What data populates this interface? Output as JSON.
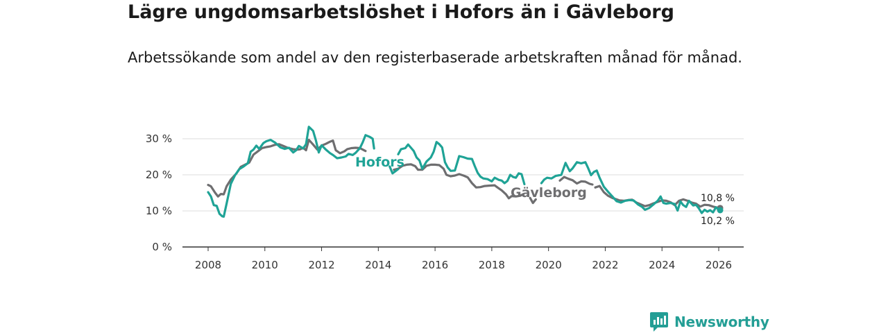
{
  "brand": {
    "name": "Newsworthy",
    "icon": "newsworthy-logo-icon",
    "color": "#239e95"
  },
  "chart_data": {
    "type": "line",
    "title": "Lägre ungdomsarbetslöshet i Hofors än i Gävleborg",
    "subtitle": "Arbetssökande som andel av den registerbaserade arbetskraften månad för månad.",
    "xlabel": "",
    "ylabel": "",
    "xlim": [
      2007.5,
      2027
    ],
    "ylim": [
      0,
      30
    ],
    "x_ticks": [
      2008,
      2010,
      2012,
      2014,
      2016,
      2018,
      2020,
      2022,
      2024,
      2026
    ],
    "x_tick_labels": [
      "2008",
      "2010",
      "2012",
      "2014",
      "2016",
      "2018",
      "2020",
      "2022",
      "2024",
      "2026"
    ],
    "y_ticks": [
      0,
      10,
      20,
      30
    ],
    "y_tick_labels": [
      "0 %",
      "10 %",
      "20 %",
      "30 %"
    ],
    "grid": true,
    "series": [
      {
        "name": "Gävleborg",
        "label": "Gävleborg",
        "color": "#6e6e70",
        "end_label": "10,8 %",
        "end_value": 10.8,
        "points": [
          [
            2008.0,
            17.2
          ],
          [
            2008.1,
            16.8
          ],
          [
            2008.25,
            15.0
          ],
          [
            2008.35,
            14.0
          ],
          [
            2008.45,
            14.7
          ],
          [
            2008.55,
            14.6
          ],
          [
            2008.65,
            16.8
          ],
          [
            2008.8,
            18.7
          ],
          [
            2009.0,
            20.4
          ],
          [
            2009.15,
            22.2
          ],
          [
            2009.3,
            22.8
          ],
          [
            2009.45,
            23.4
          ],
          [
            2009.6,
            25.6
          ],
          [
            2009.75,
            26.5
          ],
          [
            2009.9,
            27.4
          ],
          [
            2010.05,
            27.7
          ],
          [
            2010.2,
            27.9
          ],
          [
            2010.35,
            28.3
          ],
          [
            2010.5,
            28.5
          ],
          [
            2010.65,
            28.0
          ],
          [
            2010.8,
            27.5
          ],
          [
            2011.0,
            27.1
          ],
          [
            2011.15,
            27.0
          ],
          [
            2011.25,
            27.1
          ],
          [
            2011.35,
            27.5
          ],
          [
            2011.45,
            26.8
          ],
          [
            2011.55,
            29.7
          ],
          [
            2011.7,
            28.4
          ],
          [
            2011.85,
            27.0
          ],
          [
            2012.0,
            28.1
          ],
          [
            2012.15,
            28.6
          ],
          [
            2012.3,
            29.2
          ],
          [
            2012.4,
            29.5
          ],
          [
            2012.5,
            26.8
          ],
          [
            2012.65,
            26.0
          ],
          [
            2012.8,
            26.5
          ],
          [
            2012.9,
            27.1
          ],
          [
            2013.05,
            27.4
          ],
          [
            2013.2,
            27.5
          ],
          [
            2013.35,
            27.4
          ],
          [
            2013.45,
            27.0
          ],
          [
            2013.55,
            26.6
          ],
          [
            null,
            null
          ],
          [
            2014.55,
            21.4
          ],
          [
            2014.7,
            21.7
          ],
          [
            2014.85,
            22.5
          ],
          [
            2015.0,
            22.8
          ],
          [
            2015.15,
            22.9
          ],
          [
            2015.3,
            22.4
          ],
          [
            2015.4,
            21.4
          ],
          [
            2015.55,
            21.4
          ],
          [
            2015.7,
            22.5
          ],
          [
            2015.85,
            22.8
          ],
          [
            2016.0,
            22.8
          ],
          [
            2016.15,
            22.7
          ],
          [
            2016.3,
            21.7
          ],
          [
            2016.4,
            20.0
          ],
          [
            2016.55,
            19.6
          ],
          [
            2016.7,
            19.8
          ],
          [
            2016.85,
            20.2
          ],
          [
            2017.0,
            19.8
          ],
          [
            2017.15,
            19.3
          ],
          [
            2017.3,
            17.7
          ],
          [
            2017.45,
            16.5
          ],
          [
            2017.6,
            16.6
          ],
          [
            2017.75,
            16.9
          ],
          [
            2017.9,
            17.0
          ],
          [
            2018.1,
            17.1
          ],
          [
            2018.2,
            16.5
          ],
          [
            2018.35,
            15.7
          ],
          [
            2018.5,
            14.6
          ],
          [
            2018.6,
            13.5
          ],
          [
            2018.7,
            14.1
          ],
          [
            2018.85,
            14.0
          ],
          [
            2019.0,
            14.2
          ],
          [
            2019.1,
            14.6
          ],
          [
            null,
            null
          ],
          [
            2019.35,
            13.6
          ],
          [
            2019.45,
            12.2
          ],
          [
            2019.55,
            13.2
          ],
          [
            null,
            null
          ],
          [
            2020.4,
            18.4
          ],
          [
            2020.55,
            19.4
          ],
          [
            2020.7,
            18.9
          ],
          [
            2020.85,
            18.5
          ],
          [
            2021.0,
            17.6
          ],
          [
            2021.15,
            18.2
          ],
          [
            2021.3,
            18.1
          ],
          [
            2021.45,
            17.5
          ],
          [
            2021.55,
            17.3
          ],
          [
            null,
            null
          ],
          [
            2021.65,
            16.5
          ],
          [
            2021.8,
            16.9
          ],
          [
            2021.95,
            15.2
          ],
          [
            2022.1,
            14.2
          ],
          [
            2022.25,
            13.6
          ],
          [
            2022.4,
            13.2
          ],
          [
            2022.5,
            12.9
          ],
          [
            2022.65,
            12.8
          ],
          [
            2022.8,
            13.0
          ],
          [
            2022.95,
            13.1
          ],
          [
            2023.1,
            12.3
          ],
          [
            2023.25,
            11.8
          ],
          [
            2023.4,
            11.3
          ],
          [
            2023.55,
            11.6
          ],
          [
            2023.7,
            12.1
          ],
          [
            2023.85,
            12.5
          ],
          [
            2024.0,
            12.9
          ],
          [
            2024.15,
            12.8
          ],
          [
            2024.3,
            12.4
          ],
          [
            2024.45,
            11.6
          ],
          [
            2024.6,
            12.8
          ],
          [
            2024.75,
            13.2
          ],
          [
            2024.9,
            12.8
          ],
          [
            2025.05,
            12.3
          ],
          [
            2025.2,
            12.0
          ],
          [
            2025.35,
            11.2
          ],
          [
            2025.5,
            11.7
          ],
          [
            2025.65,
            11.6
          ],
          [
            2025.8,
            11.2
          ],
          [
            2025.95,
            10.9
          ],
          [
            2026.05,
            10.8
          ]
        ]
      },
      {
        "name": "Hofors",
        "label": "Hofors",
        "color": "#1fa396",
        "end_label": "10,2 %",
        "end_value": 10.2,
        "points": [
          [
            2008.0,
            15.2
          ],
          [
            2008.1,
            14.0
          ],
          [
            2008.2,
            11.6
          ],
          [
            2008.3,
            11.4
          ],
          [
            2008.4,
            9.2
          ],
          [
            2008.5,
            8.5
          ],
          [
            2008.55,
            8.4
          ],
          [
            2008.65,
            12.0
          ],
          [
            2008.8,
            17.5
          ],
          [
            2008.95,
            19.9
          ],
          [
            2009.1,
            21.6
          ],
          [
            2009.25,
            22.3
          ],
          [
            2009.4,
            23.2
          ],
          [
            2009.5,
            26.4
          ],
          [
            2009.6,
            27.0
          ],
          [
            2009.7,
            28.1
          ],
          [
            2009.8,
            27.2
          ],
          [
            2009.95,
            28.8
          ],
          [
            2010.05,
            29.3
          ],
          [
            2010.2,
            29.7
          ],
          [
            2010.35,
            29.0
          ],
          [
            2010.45,
            28.3
          ],
          [
            2010.55,
            27.6
          ],
          [
            2010.7,
            27.2
          ],
          [
            2010.85,
            27.5
          ],
          [
            2011.0,
            26.2
          ],
          [
            2011.1,
            26.8
          ],
          [
            2011.2,
            28.0
          ],
          [
            2011.35,
            27.3
          ],
          [
            2011.45,
            28.5
          ],
          [
            2011.55,
            33.3
          ],
          [
            2011.7,
            32.2
          ],
          [
            2011.8,
            29.5
          ],
          [
            2011.9,
            26.2
          ],
          [
            2012.0,
            28.2
          ],
          [
            2012.15,
            27.0
          ],
          [
            2012.3,
            26.0
          ],
          [
            2012.4,
            25.5
          ],
          [
            2012.55,
            24.6
          ],
          [
            2012.7,
            24.8
          ],
          [
            2012.85,
            25.1
          ],
          [
            2012.95,
            25.8
          ],
          [
            2013.1,
            25.5
          ],
          [
            2013.2,
            26.1
          ],
          [
            2013.35,
            27.4
          ],
          [
            2013.45,
            29.0
          ],
          [
            2013.55,
            31.0
          ],
          [
            2013.7,
            30.5
          ],
          [
            2013.8,
            30.0
          ],
          [
            2013.85,
            27.3
          ],
          [
            null,
            null
          ],
          [
            2014.4,
            22.3
          ],
          [
            2014.5,
            20.4
          ],
          [
            2014.6,
            21.0
          ],
          [
            2014.7,
            21.6
          ],
          [
            null,
            null
          ],
          [
            2014.7,
            25.7
          ],
          [
            2014.8,
            27.1
          ],
          [
            2014.95,
            27.4
          ],
          [
            2015.05,
            28.4
          ],
          [
            2015.15,
            27.5
          ],
          [
            2015.25,
            26.6
          ],
          [
            2015.35,
            24.8
          ],
          [
            2015.45,
            24.0
          ],
          [
            2015.55,
            21.7
          ],
          [
            2015.7,
            23.7
          ],
          [
            2015.85,
            24.8
          ],
          [
            2015.95,
            26.4
          ],
          [
            2016.05,
            29.1
          ],
          [
            2016.15,
            28.5
          ],
          [
            2016.25,
            27.6
          ],
          [
            2016.35,
            23.5
          ],
          [
            2016.45,
            22.0
          ],
          [
            2016.55,
            21.1
          ],
          [
            2016.7,
            21.2
          ],
          [
            2016.85,
            25.2
          ],
          [
            2017.0,
            24.9
          ],
          [
            2017.15,
            24.5
          ],
          [
            2017.3,
            24.4
          ],
          [
            2017.4,
            22.4
          ],
          [
            2017.5,
            20.6
          ],
          [
            2017.6,
            19.5
          ],
          [
            2017.7,
            19.0
          ],
          [
            2017.85,
            18.8
          ],
          [
            2018.0,
            18.2
          ],
          [
            2018.1,
            19.2
          ],
          [
            2018.25,
            18.6
          ],
          [
            2018.35,
            18.4
          ],
          [
            2018.45,
            17.7
          ],
          [
            2018.55,
            18.3
          ],
          [
            2018.65,
            20.0
          ],
          [
            2018.75,
            19.4
          ],
          [
            2018.85,
            19.2
          ],
          [
            2018.95,
            20.4
          ],
          [
            2019.05,
            20.2
          ],
          [
            2019.15,
            17.4
          ],
          [
            null,
            null
          ],
          [
            2019.75,
            17.7
          ],
          [
            2019.85,
            18.7
          ],
          [
            2019.95,
            19.2
          ],
          [
            2020.1,
            19.0
          ],
          [
            2020.25,
            19.7
          ],
          [
            2020.45,
            20.0
          ],
          [
            2020.6,
            23.3
          ],
          [
            2020.75,
            21.0
          ],
          [
            2020.85,
            21.8
          ],
          [
            2021.0,
            23.5
          ],
          [
            2021.15,
            23.2
          ],
          [
            2021.3,
            23.5
          ],
          [
            2021.4,
            21.8
          ],
          [
            2021.5,
            19.9
          ],
          [
            2021.6,
            20.8
          ],
          [
            2021.7,
            21.2
          ],
          [
            2021.8,
            19.2
          ],
          [
            2021.95,
            16.7
          ],
          [
            2022.1,
            15.3
          ],
          [
            2022.25,
            14.0
          ],
          [
            2022.4,
            12.7
          ],
          [
            2022.55,
            12.3
          ],
          [
            2022.7,
            12.8
          ],
          [
            2022.85,
            13.0
          ],
          [
            2023.0,
            12.9
          ],
          [
            2023.15,
            11.8
          ],
          [
            2023.3,
            11.1
          ],
          [
            2023.4,
            10.3
          ],
          [
            2023.55,
            10.8
          ],
          [
            2023.7,
            11.8
          ],
          [
            2023.85,
            12.8
          ],
          [
            2023.95,
            14.0
          ],
          [
            2024.05,
            12.2
          ],
          [
            2024.15,
            12.0
          ],
          [
            2024.3,
            12.2
          ],
          [
            2024.45,
            11.9
          ],
          [
            2024.55,
            10.1
          ],
          [
            2024.65,
            12.6
          ],
          [
            2024.75,
            11.6
          ],
          [
            2024.85,
            11.1
          ],
          [
            2024.95,
            12.8
          ],
          [
            2025.1,
            11.5
          ],
          [
            2025.2,
            11.7
          ],
          [
            2025.3,
            10.7
          ],
          [
            2025.4,
            9.4
          ],
          [
            2025.5,
            10.3
          ],
          [
            2025.6,
            9.8
          ],
          [
            2025.7,
            10.2
          ],
          [
            2025.8,
            9.6
          ],
          [
            2025.9,
            11.0
          ],
          [
            2026.0,
            10.3
          ],
          [
            2026.05,
            10.2
          ]
        ]
      }
    ]
  }
}
